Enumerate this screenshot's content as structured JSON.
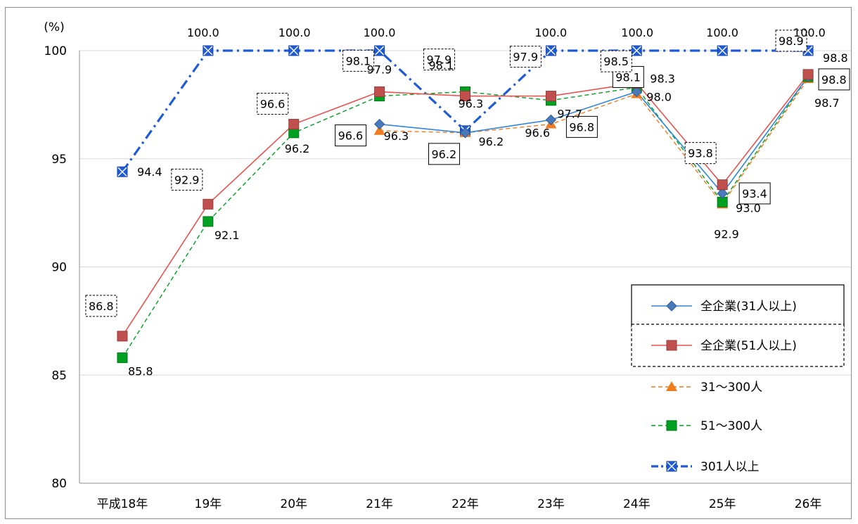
{
  "chart_data": {
    "type": "line",
    "yunit": "(%)",
    "ylim": [
      80,
      100
    ],
    "yticks": [
      80,
      85,
      90,
      95,
      100
    ],
    "categories": [
      "平成18年",
      "19年",
      "20年",
      "21年",
      "22年",
      "23年",
      "24年",
      "25年",
      "26年"
    ],
    "grid": "horizontal",
    "legend_position": "right",
    "series": [
      {
        "key": "all31",
        "name": "全企業(31人以上)",
        "color": "#2e86de",
        "marker": "diamond",
        "dash": "solid",
        "values": [
          null,
          null,
          null,
          96.6,
          96.2,
          96.8,
          98.1,
          93.4,
          98.8
        ]
      },
      {
        "key": "all51",
        "name": "全企業(51人以上)",
        "color": "#e8534f",
        "marker": "square",
        "dash": "solid",
        "values": [
          86.8,
          92.9,
          96.6,
          98.1,
          97.9,
          97.9,
          98.5,
          93.8,
          98.9
        ]
      },
      {
        "key": "s31",
        "name": "31〜300人",
        "color": "#f07c1e",
        "marker": "triangle",
        "dash": "dash",
        "values": [
          null,
          null,
          null,
          96.3,
          96.2,
          96.6,
          98.0,
          92.9,
          98.7
        ]
      },
      {
        "key": "s51",
        "name": "51〜300人",
        "color": "#00a020",
        "marker": "square",
        "dash": "dash",
        "values": [
          85.8,
          92.1,
          96.2,
          97.9,
          98.1,
          97.7,
          98.3,
          93.0,
          98.8
        ]
      },
      {
        "key": "l301",
        "name": "301人以上",
        "color": "#1f5bd6",
        "marker": "xsquare",
        "dash": "dashdot",
        "values": [
          94.4,
          100.0,
          100.0,
          100.0,
          96.3,
          100.0,
          100.0,
          100.0,
          100.0
        ]
      }
    ],
    "labels": {
      "all31": [
        "",
        "",
        "",
        "96.6",
        "96.2",
        "96.8",
        "98.1",
        "93.4",
        "98.8"
      ],
      "all51": [
        "86.8",
        "92.9",
        "96.6",
        "98.1",
        "97.9",
        "97.9",
        "98.5",
        "93.8",
        "98.9"
      ],
      "s31": [
        "",
        "",
        "",
        "96.3",
        "96.2",
        "96.6",
        "98.0",
        "92.9",
        "98.7"
      ],
      "s51": [
        "85.8",
        "92.1",
        "96.2",
        "97.9",
        "98.1",
        "97.7",
        "98.3",
        "93.0",
        "98.8"
      ],
      "l301": [
        "94.4",
        "100.0",
        "100.0",
        "100.0",
        "96.3",
        "100.0",
        "100.0",
        "100.0",
        "100.0"
      ]
    }
  }
}
